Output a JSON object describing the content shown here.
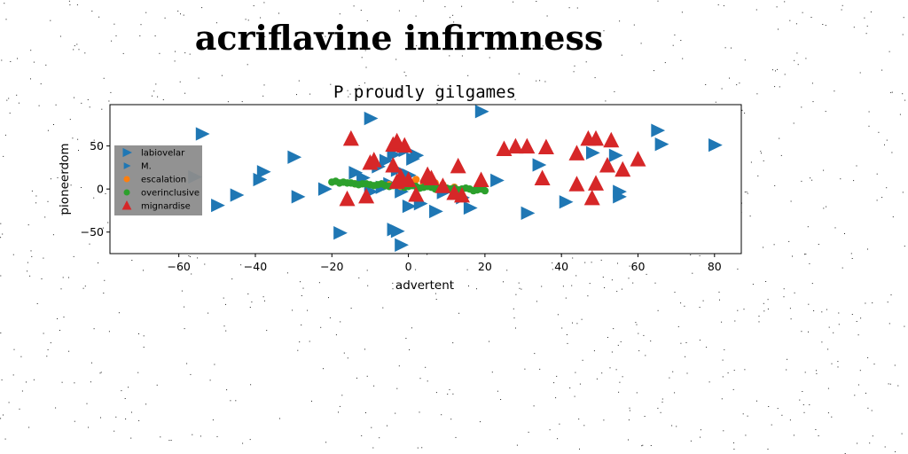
{
  "page": {
    "title": "acriflavine infirmness"
  },
  "chart_data": {
    "type": "scatter",
    "title": "P proudly gilgames",
    "xlabel": "advertent",
    "ylabel": "pioneerdom",
    "xlim": [
      -78,
      87
    ],
    "ylim": [
      -75,
      98
    ],
    "xticks": [
      -60,
      -40,
      -20,
      0,
      20,
      40,
      60,
      80
    ],
    "yticks": [
      -50,
      0,
      50
    ],
    "grid": false,
    "legend_position": "center-left",
    "legend_background": "#8c8c8c",
    "series": [
      {
        "name": "labiovelar",
        "marker": "triangle-right",
        "color": "#1f77b4",
        "size": "large",
        "points": []
      },
      {
        "name": "M.",
        "marker": "triangle-right",
        "color": "#1f77b4",
        "size": "medium",
        "points": [
          [
            -54,
            64
          ],
          [
            -10,
            82
          ],
          [
            19,
            90
          ],
          [
            65,
            68
          ],
          [
            66,
            52
          ],
          [
            80,
            51
          ],
          [
            -30,
            37
          ],
          [
            -38,
            20
          ],
          [
            -39,
            11
          ],
          [
            -56,
            14
          ],
          [
            -45,
            -7
          ],
          [
            -50,
            -19
          ],
          [
            -29,
            -9
          ],
          [
            -22,
            0
          ],
          [
            -14,
            19
          ],
          [
            -12,
            13
          ],
          [
            -8,
            26
          ],
          [
            -6,
            33
          ],
          [
            -4,
            40
          ],
          [
            -1,
            45
          ],
          [
            1,
            35
          ],
          [
            2,
            39
          ],
          [
            -3,
            22
          ],
          [
            0,
            16
          ],
          [
            -10,
            -3
          ],
          [
            -7,
            2
          ],
          [
            -5,
            6
          ],
          [
            -2,
            -3
          ],
          [
            0,
            -20
          ],
          [
            3,
            -17
          ],
          [
            7,
            -26
          ],
          [
            9,
            -4
          ],
          [
            14,
            -10
          ],
          [
            16,
            -22
          ],
          [
            23,
            10
          ],
          [
            31,
            -28
          ],
          [
            34,
            28
          ],
          [
            41,
            -15
          ],
          [
            48,
            42
          ],
          [
            54,
            39
          ],
          [
            55,
            -3
          ],
          [
            55,
            -9
          ],
          [
            -18,
            -51
          ],
          [
            -4,
            -47
          ],
          [
            -3,
            -49
          ],
          [
            -2,
            -65
          ]
        ]
      },
      {
        "name": "escalation",
        "marker": "circle",
        "color": "#ff7f0e",
        "size": "small",
        "points": [
          [
            -14,
            6
          ],
          [
            -5,
            5
          ],
          [
            1,
            6
          ],
          [
            2,
            11
          ],
          [
            4,
            7
          ],
          [
            7,
            7
          ],
          [
            9,
            5
          ],
          [
            12,
            2
          ],
          [
            -2,
            3
          ],
          [
            6,
            4
          ]
        ]
      },
      {
        "name": "overinclusive",
        "marker": "circle",
        "color": "#2ca02c",
        "size": "small",
        "points": [
          [
            -20,
            8
          ],
          [
            -18,
            7
          ],
          [
            -16,
            7
          ],
          [
            -14,
            6
          ],
          [
            -12,
            6
          ],
          [
            -10,
            5
          ],
          [
            -8,
            5
          ],
          [
            -6,
            4
          ],
          [
            -4,
            4
          ],
          [
            -2,
            4
          ],
          [
            0,
            3
          ],
          [
            2,
            3
          ],
          [
            4,
            2
          ],
          [
            6,
            2
          ],
          [
            8,
            1
          ],
          [
            10,
            1
          ],
          [
            12,
            1
          ],
          [
            14,
            0
          ],
          [
            16,
            0
          ],
          [
            18,
            -1
          ],
          [
            20,
            -2
          ],
          [
            -19,
            9
          ],
          [
            -17,
            8
          ],
          [
            -15,
            7
          ],
          [
            -13,
            5
          ],
          [
            -11,
            6
          ],
          [
            -9,
            4
          ],
          [
            -7,
            6
          ],
          [
            -5,
            3
          ],
          [
            -3,
            5
          ],
          [
            -1,
            2
          ],
          [
            1,
            4
          ],
          [
            3,
            1
          ],
          [
            5,
            3
          ],
          [
            7,
            0
          ],
          [
            9,
            2
          ],
          [
            11,
            0
          ],
          [
            13,
            -1
          ],
          [
            15,
            1
          ],
          [
            17,
            -2
          ],
          [
            19,
            0
          ]
        ]
      },
      {
        "name": "mignardise",
        "marker": "triangle-up",
        "color": "#d62728",
        "size": "large",
        "points": [
          [
            -15,
            58
          ],
          [
            -4,
            51
          ],
          [
            -3,
            55
          ],
          [
            -1,
            50
          ],
          [
            -9,
            33
          ],
          [
            -10,
            30
          ],
          [
            -4,
            27
          ],
          [
            -2,
            14
          ],
          [
            0,
            10
          ],
          [
            5,
            14
          ],
          [
            6,
            12
          ],
          [
            13,
            26
          ],
          [
            19,
            10
          ],
          [
            25,
            46
          ],
          [
            28,
            49
          ],
          [
            31,
            49
          ],
          [
            36,
            48
          ],
          [
            35,
            12
          ],
          [
            44,
            41
          ],
          [
            44,
            5
          ],
          [
            47,
            58
          ],
          [
            49,
            58
          ],
          [
            48,
            -11
          ],
          [
            49,
            6
          ],
          [
            53,
            56
          ],
          [
            52,
            27
          ],
          [
            56,
            22
          ],
          [
            60,
            34
          ],
          [
            -16,
            -12
          ],
          [
            -11,
            -9
          ],
          [
            2,
            -7
          ],
          [
            9,
            3
          ],
          [
            12,
            -5
          ],
          [
            14,
            -8
          ],
          [
            5,
            16
          ],
          [
            -3,
            8
          ]
        ]
      }
    ]
  }
}
